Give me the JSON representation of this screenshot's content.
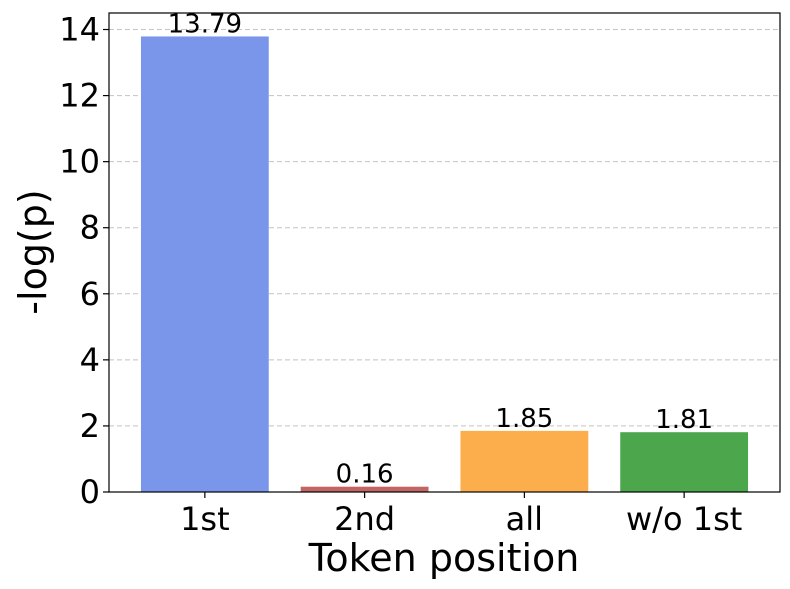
{
  "chart_data": {
    "type": "bar",
    "categories": [
      "1st",
      "2nd",
      "all",
      "w/o 1st"
    ],
    "values": [
      13.79,
      0.16,
      1.85,
      1.81
    ],
    "value_labels": [
      "13.79",
      "0.16",
      "1.85",
      "1.81"
    ],
    "colors": [
      "#7a96ea",
      "#c26565",
      "#fdae4c",
      "#4ca64c"
    ],
    "xlabel": "Token position",
    "ylabel": "-log(p)",
    "ylim": [
      0,
      14.5
    ],
    "yticks": [
      0,
      2,
      4,
      6,
      8,
      10,
      12,
      14
    ],
    "grid": true
  }
}
